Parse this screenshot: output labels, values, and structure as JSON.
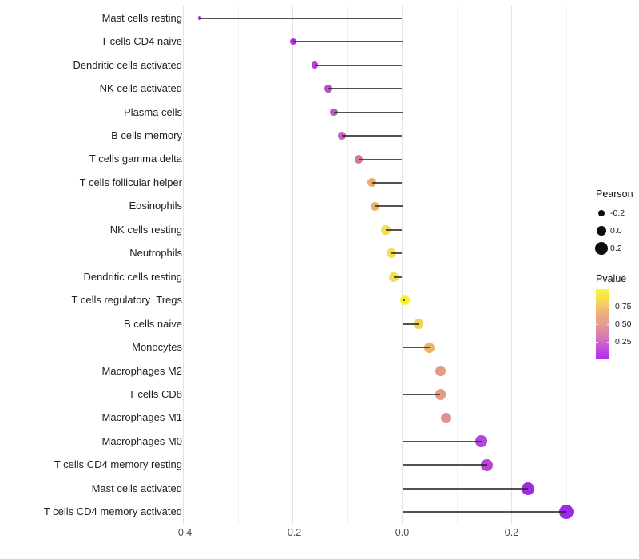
{
  "chart_data": {
    "type": "scatter",
    "subtype": "lollipop",
    "title": "",
    "xlabel": "",
    "ylabel": "",
    "grid": true,
    "background": "#ffffff",
    "xlim": [
      -0.405,
      0.334
    ],
    "x_ticks": [
      {
        "value": -0.4,
        "label": "-0.4"
      },
      {
        "value": -0.2,
        "label": "-0.2"
      },
      {
        "value": 0.0,
        "label": "0.0"
      },
      {
        "value": 0.2,
        "label": "0.2"
      }
    ],
    "x_minor_gridlines": [
      -0.3,
      -0.1,
      0.1,
      0.3
    ],
    "categories": [
      "Mast cells resting",
      "T cells CD4 naive",
      "Dendritic cells activated",
      "NK cells activated",
      "Plasma cells",
      "B cells memory",
      "T cells gamma delta",
      "T cells follicular helper",
      "Eosinophils",
      "NK cells resting",
      "Neutrophils",
      "Dendritic cells resting",
      "T cells regulatory  Tregs",
      "B cells naive",
      "Monocytes",
      "Macrophages M2",
      "T cells CD8",
      "Macrophages M1",
      "Macrophages M0",
      "T cells CD4 memory resting",
      "Mast cells activated",
      "T cells CD4 memory activated"
    ],
    "series": [
      {
        "name": "Pearson",
        "values": [
          -0.37,
          -0.2,
          -0.16,
          -0.135,
          -0.125,
          -0.11,
          -0.08,
          -0.055,
          -0.05,
          -0.03,
          -0.02,
          -0.015,
          0.005,
          0.03,
          0.05,
          0.07,
          0.07,
          0.08,
          0.145,
          0.155,
          0.23,
          0.3
        ]
      }
    ],
    "point_colors": [
      "#9B2BE2",
      "#A935DC",
      "#B440D7",
      "#BD4BD2",
      "#C254CD",
      "#C75FC6",
      "#D3798F",
      "#EAAC6C",
      "#ECB06F",
      "#F2DE52",
      "#F4E04E",
      "#F3DF50",
      "#FAF226",
      "#F2D355",
      "#EDB266",
      "#E69A82",
      "#E59B82",
      "#E19090",
      "#AC49DA",
      "#B644D2",
      "#9F2BE5",
      "#9C29E9"
    ],
    "stem_color": "#2b2b2b",
    "legends": {
      "size": {
        "title": "Pearson",
        "entries": [
          {
            "label": "-0.2",
            "value": -0.2
          },
          {
            "label": "0.0",
            "value": 0.0
          },
          {
            "label": "0.2",
            "value": 0.2
          }
        ]
      },
      "color": {
        "title": "Pvalue",
        "tick_labels": [
          "0.75",
          "0.50",
          "0.25"
        ],
        "tick_positions_pct": [
          25,
          50,
          75
        ],
        "gradient_top_to_bottom": [
          "#FBF538",
          "#F6D95C",
          "#EFB07B",
          "#E69A92",
          "#DA7BB2",
          "#C44FDB",
          "#AC2BF2"
        ]
      }
    }
  }
}
